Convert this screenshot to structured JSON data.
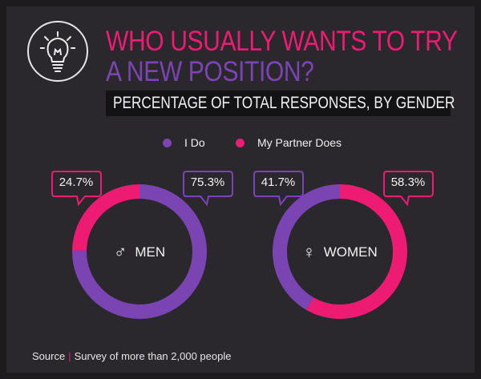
{
  "header": {
    "title_line1": "WHO USUALLY WANTS TO TRY",
    "title_line2": "A NEW POSITION?",
    "subtitle": "PERCENTAGE OF TOTAL RESPONSES, BY GENDER",
    "icon": "lightbulb-icon"
  },
  "colors": {
    "i_do": "#7b44b3",
    "partner": "#ee1b72",
    "background": "#2a282c"
  },
  "legend": [
    {
      "label": "I Do",
      "color": "#7b44b3"
    },
    {
      "label": "My Partner Does",
      "color": "#ee1b72"
    }
  ],
  "chart_data": [
    {
      "type": "pie",
      "center_label": "MEN",
      "center_icon": "male-symbol-icon",
      "center_glyph": "♂",
      "slices": [
        {
          "name": "I Do",
          "value": 75.3,
          "label": "75.3%"
        },
        {
          "name": "My Partner Does",
          "value": 24.7,
          "label": "24.7%"
        }
      ]
    },
    {
      "type": "pie",
      "center_label": "WOMEN",
      "center_icon": "female-symbol-icon",
      "center_glyph": "♀",
      "slices": [
        {
          "name": "I Do",
          "value": 41.7,
          "label": "41.7%"
        },
        {
          "name": "My Partner Does",
          "value": 58.3,
          "label": "58.3%"
        }
      ]
    }
  ],
  "footer": {
    "source_label": "Source",
    "separator": "|",
    "source_text": "Survey of more than 2,000 people"
  }
}
